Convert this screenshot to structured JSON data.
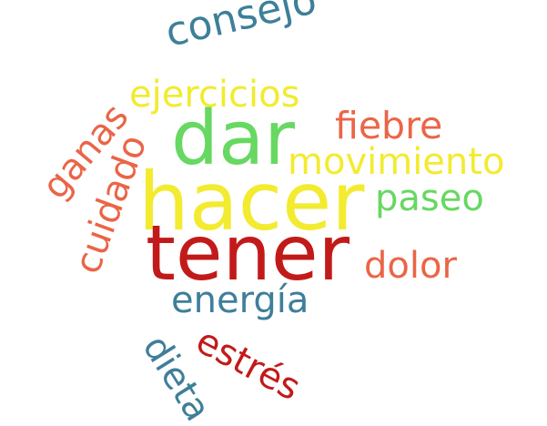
{
  "word_cloud": {
    "words": [
      {
        "id": "consejo",
        "text": "consejo",
        "color": "#3E7F99"
      },
      {
        "id": "ejercicios",
        "text": "ejercicios",
        "color": "#F2EB30"
      },
      {
        "id": "ganas",
        "text": "ganas",
        "color": "#EA6547"
      },
      {
        "id": "fiebre",
        "text": "fiebre",
        "color": "#EA6547"
      },
      {
        "id": "dar",
        "text": "dar",
        "color": "#67D861"
      },
      {
        "id": "movimiento",
        "text": "movimiento",
        "color": "#F2EB30"
      },
      {
        "id": "cuidado",
        "text": "cuidado",
        "color": "#EA6547"
      },
      {
        "id": "hacer",
        "text": "hacer",
        "color": "#F2EB30"
      },
      {
        "id": "paseo",
        "text": "paseo",
        "color": "#67D861"
      },
      {
        "id": "tener",
        "text": "tener",
        "color": "#C21A1A"
      },
      {
        "id": "dolor",
        "text": "dolor",
        "color": "#EA6547"
      },
      {
        "id": "energia",
        "text": "energía",
        "color": "#3E7F99"
      },
      {
        "id": "dieta",
        "text": "dieta",
        "color": "#3E7F99"
      },
      {
        "id": "estres",
        "text": "estrés",
        "color": "#C21A1A"
      }
    ]
  }
}
